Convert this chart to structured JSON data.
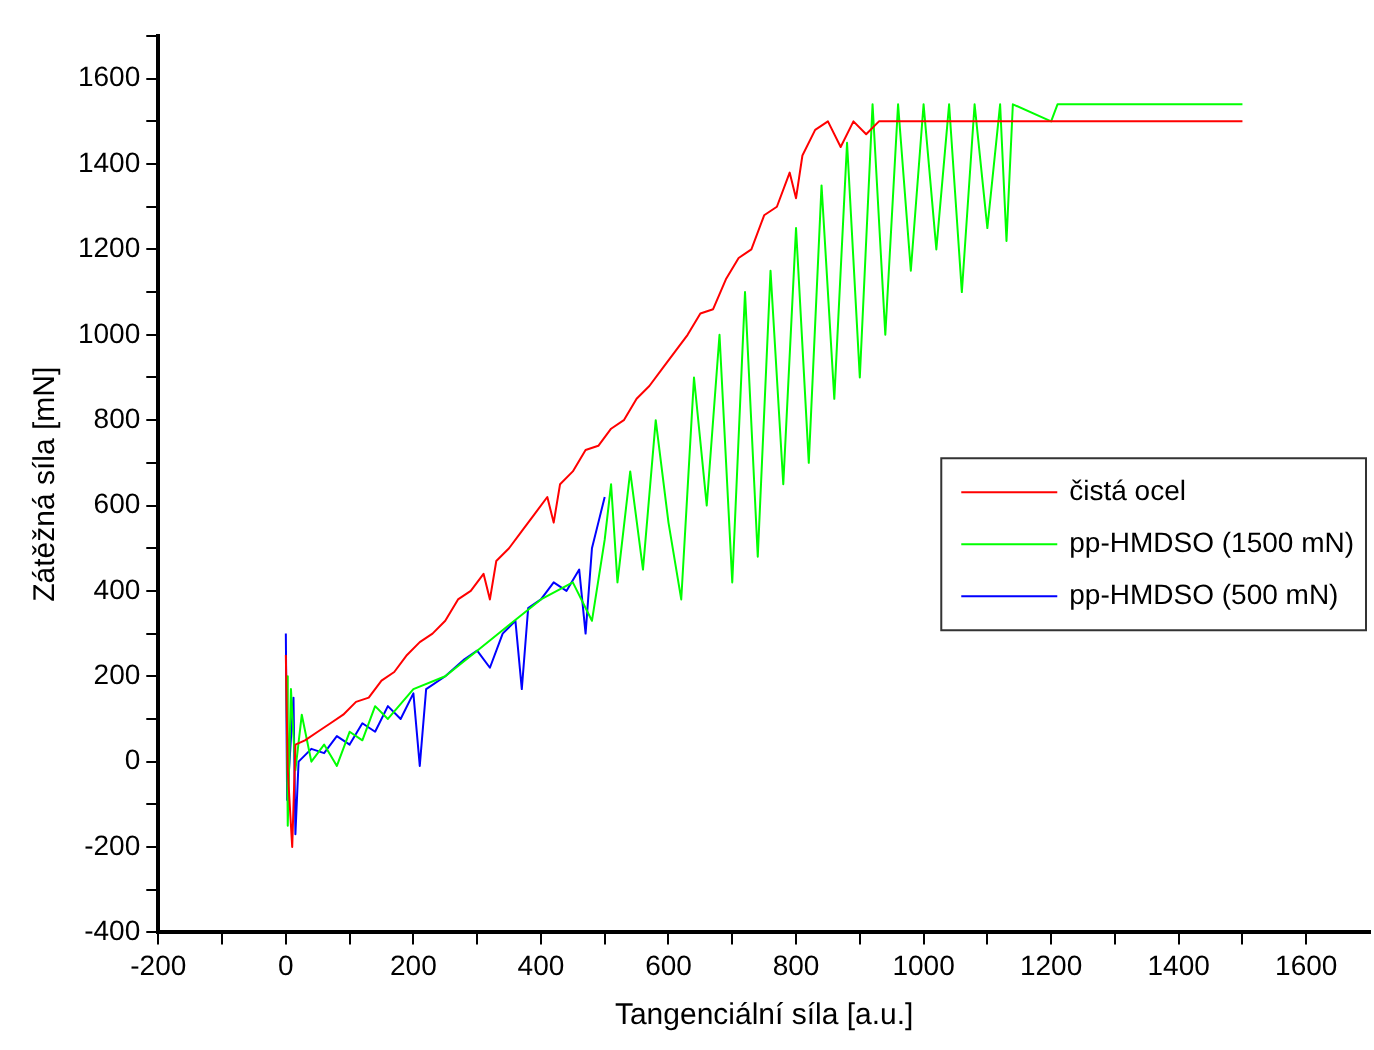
{
  "chart_data": {
    "type": "line",
    "xlabel": "Tangenciální síla [a.u.]",
    "ylabel": "Zátěžná síla [mN]",
    "xlim": [
      -200,
      1700
    ],
    "xticks": [
      -200,
      {
        "value": -100,
        "label": null
      },
      0,
      {
        "value": 100,
        "label": null
      },
      200,
      {
        "value": 300,
        "label": null
      },
      400,
      {
        "value": 500,
        "label": null
      },
      600,
      {
        "value": 700,
        "label": null
      },
      800,
      {
        "value": 900,
        "label": null
      },
      1000,
      {
        "value": 1100,
        "label": null
      },
      1200,
      {
        "value": 1300,
        "label": null
      },
      1400,
      {
        "value": 1500,
        "label": null
      },
      1600
    ],
    "ylim": [
      -400,
      1700
    ],
    "yticks": [
      -400,
      {
        "value": -300,
        "label": null
      },
      -200,
      {
        "value": -100,
        "label": null
      },
      0,
      {
        "value": 100,
        "label": null
      },
      200,
      {
        "value": 300,
        "label": null
      },
      400,
      {
        "value": 500,
        "label": null
      },
      600,
      {
        "value": 700,
        "label": null
      },
      800,
      {
        "value": 900,
        "label": null
      },
      1000,
      {
        "value": 1100,
        "label": null
      },
      1200,
      {
        "value": 1300,
        "label": null
      },
      1400,
      {
        "value": 1500,
        "label": null
      },
      1600,
      {
        "value": 1700,
        "label": null
      }
    ],
    "grid": false,
    "legend": "right",
    "marker": "none",
    "line_style": "solid",
    "series": [
      {
        "name": "čistá ocel",
        "color": "#ff0000",
        "x": [
          0,
          3,
          10,
          15,
          30,
          50,
          70,
          90,
          110,
          130,
          150,
          170,
          190,
          210,
          230,
          250,
          270,
          290,
          310,
          320,
          330,
          350,
          370,
          390,
          410,
          420,
          430,
          450,
          470,
          490,
          510,
          530,
          550,
          570,
          590,
          610,
          630,
          650,
          670,
          690,
          710,
          730,
          750,
          770,
          790,
          800,
          810,
          830,
          850,
          870,
          890,
          910,
          930,
          1500
        ],
        "values": [
          250,
          -20,
          -200,
          40,
          50,
          70,
          90,
          110,
          140,
          150,
          190,
          210,
          250,
          280,
          300,
          330,
          380,
          400,
          440,
          380,
          470,
          500,
          540,
          580,
          620,
          560,
          650,
          680,
          730,
          740,
          780,
          800,
          850,
          880,
          920,
          960,
          1000,
          1050,
          1060,
          1130,
          1180,
          1200,
          1280,
          1300,
          1380,
          1320,
          1420,
          1480,
          1500,
          1440,
          1500,
          1470,
          1500,
          1500
        ]
      },
      {
        "name": "pp-HMDSO (1500 mN)",
        "color": "#00ff00",
        "x": [
          1,
          3,
          8,
          15,
          25,
          40,
          60,
          80,
          100,
          120,
          140,
          160,
          200,
          250,
          300,
          350,
          400,
          450,
          480,
          500,
          510,
          520,
          540,
          560,
          580,
          600,
          620,
          640,
          660,
          680,
          700,
          720,
          740,
          760,
          780,
          800,
          820,
          840,
          860,
          880,
          900,
          920,
          940,
          960,
          980,
          1000,
          1020,
          1040,
          1060,
          1080,
          1100,
          1120,
          1130,
          1140,
          1200,
          1210,
          1500
        ],
        "values": [
          200,
          -150,
          170,
          -20,
          110,
          0,
          40,
          -10,
          70,
          50,
          130,
          100,
          170,
          200,
          260,
          320,
          380,
          420,
          330,
          520,
          650,
          420,
          680,
          450,
          800,
          560,
          380,
          900,
          600,
          1000,
          420,
          1100,
          480,
          1150,
          650,
          1250,
          700,
          1350,
          850,
          1450,
          900,
          1540,
          1000,
          1540,
          1150,
          1540,
          1200,
          1540,
          1100,
          1540,
          1250,
          1540,
          1220,
          1540,
          1500,
          1540,
          1540
        ]
      },
      {
        "name": "pp-HMDSO (500 mN)",
        "color": "#0000ff",
        "x": [
          0,
          2,
          12,
          15,
          20,
          40,
          60,
          80,
          100,
          120,
          140,
          160,
          180,
          200,
          210,
          220,
          250,
          280,
          300,
          320,
          340,
          360,
          370,
          380,
          400,
          420,
          440,
          460,
          470,
          480,
          490,
          500
        ],
        "values": [
          300,
          -90,
          150,
          -170,
          0,
          30,
          20,
          60,
          40,
          90,
          70,
          130,
          100,
          160,
          -10,
          170,
          200,
          240,
          260,
          220,
          300,
          330,
          170,
          360,
          380,
          420,
          400,
          450,
          300,
          500,
          560,
          620
        ]
      }
    ]
  }
}
